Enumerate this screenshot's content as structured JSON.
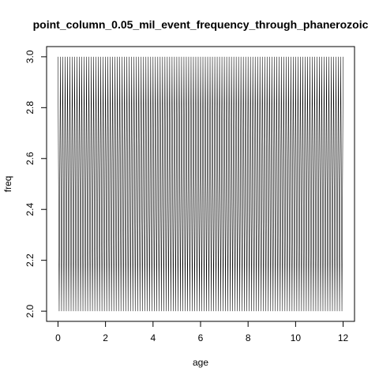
{
  "chart_data": {
    "type": "line",
    "title": "point_column_0.05_mil_event_frequency_through_phanerozoic",
    "xlabel": "age",
    "ylabel": "freq",
    "xlim": [
      -0.48,
      12.48
    ],
    "ylim": [
      1.96,
      3.04
    ],
    "x_ticks": [
      0,
      2,
      4,
      6,
      8,
      10,
      12
    ],
    "y_ticks": [
      2.0,
      2.2,
      2.4,
      2.6,
      2.8,
      3.0
    ],
    "x_tick_labels": [
      "0",
      "2",
      "4",
      "6",
      "8",
      "10",
      "12"
    ],
    "y_tick_labels": [
      "2.0",
      "2.2",
      "2.4",
      "2.6",
      "2.8",
      "3.0"
    ],
    "series": [
      {
        "x_start": 0,
        "x_end": 12,
        "x_step": 0.05,
        "pattern": "alternating",
        "y_values_cycle": [
          3,
          2
        ],
        "color": "#000000"
      }
    ],
    "grid": false,
    "legend": "none"
  }
}
